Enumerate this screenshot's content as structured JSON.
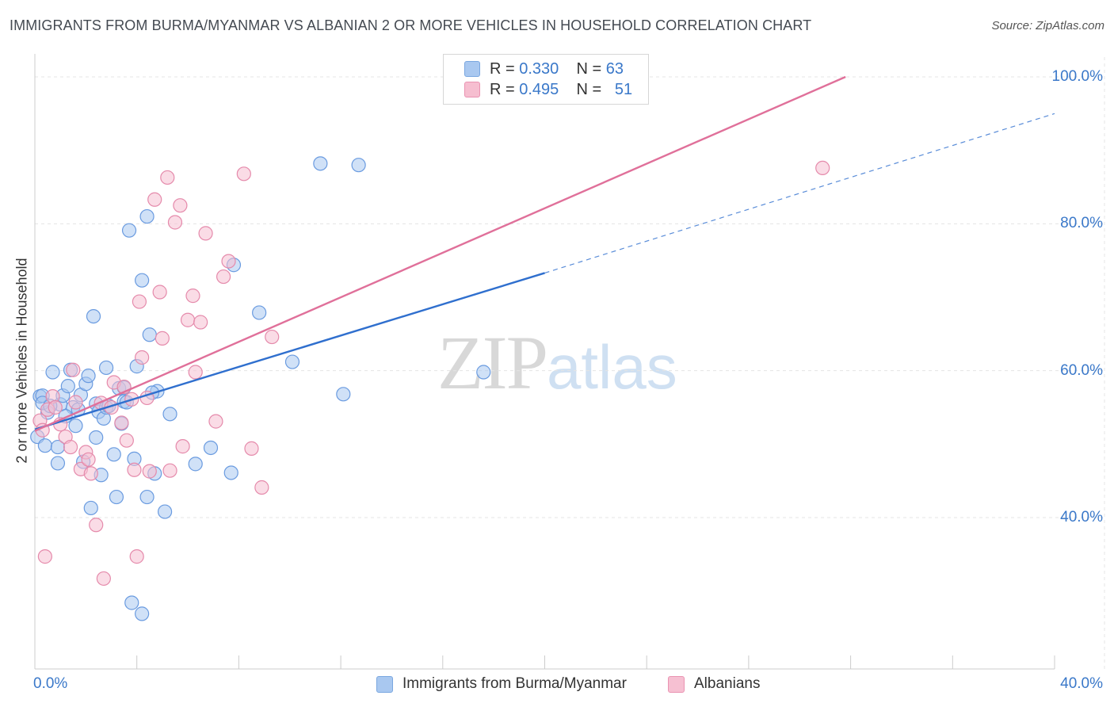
{
  "header": {
    "title": "IMMIGRANTS FROM BURMA/MYANMAR VS ALBANIAN 2 OR MORE VEHICLES IN HOUSEHOLD CORRELATION CHART",
    "source": "Source: ZipAtlas.com"
  },
  "watermark": {
    "zip": "ZIP",
    "atlas": "atlas"
  },
  "legend": {
    "rows": [
      {
        "r_label": "R =",
        "r_value": "0.330",
        "n_label": "N =",
        "n_value": "63",
        "color": "#a9c8f0",
        "border": "#7aa7e0"
      },
      {
        "r_label": "R =",
        "r_value": "0.495",
        "n_label": "N =",
        "n_value": "51",
        "color": "#f6bed0",
        "border": "#ea93b2"
      }
    ]
  },
  "colors": {
    "blue_fill": "#a9c8f0",
    "blue_stroke": "#6a9be0",
    "blue_line": "#2f6fce",
    "pink_fill": "#f6c0d2",
    "pink_stroke": "#e58aab",
    "pink_line": "#e0709a",
    "grid": "#e4e4e4",
    "axis": "#cccccc"
  },
  "chart_data": {
    "type": "scatter",
    "title": "IMMIGRANTS FROM BURMA/MYANMAR VS ALBANIAN 2 OR MORE VEHICLES IN HOUSEHOLD CORRELATION CHART",
    "xlabel": "",
    "ylabel": "2 or more Vehicles in Household",
    "xlim": [
      0,
      40
    ],
    "ylim": [
      20,
      102
    ],
    "x_tick_labels": [
      "0.0%",
      "40.0%"
    ],
    "y_ticks": [
      40,
      60,
      80,
      100
    ],
    "y_tick_labels": [
      "40.0%",
      "60.0%",
      "80.0%",
      "100.0%"
    ],
    "grid": true,
    "legend_position": "top-center",
    "series": [
      {
        "name": "Immigrants from Burma/Myanmar",
        "color": "#a9c8f0",
        "trend": {
          "x": [
            0,
            20
          ],
          "y": [
            52.0,
            73.3
          ],
          "dashed_to": [
            40,
            95.0
          ]
        },
        "points": [
          [
            0.1,
            51.0
          ],
          [
            0.2,
            56.5
          ],
          [
            0.3,
            56.6
          ],
          [
            0.4,
            49.8
          ],
          [
            0.5,
            54.3
          ],
          [
            0.7,
            59.8
          ],
          [
            0.9,
            47.4
          ],
          [
            0.9,
            49.6
          ],
          [
            1.0,
            55.4
          ],
          [
            1.1,
            56.6
          ],
          [
            1.3,
            57.9
          ],
          [
            1.4,
            60.1
          ],
          [
            1.5,
            55.0
          ],
          [
            1.6,
            52.5
          ],
          [
            1.7,
            54.7
          ],
          [
            1.8,
            56.7
          ],
          [
            1.9,
            47.6
          ],
          [
            2.0,
            58.2
          ],
          [
            2.1,
            59.3
          ],
          [
            2.2,
            41.3
          ],
          [
            2.3,
            67.4
          ],
          [
            2.4,
            55.5
          ],
          [
            2.4,
            50.9
          ],
          [
            2.5,
            54.4
          ],
          [
            2.6,
            45.8
          ],
          [
            2.7,
            53.5
          ],
          [
            2.8,
            55.0
          ],
          [
            2.8,
            60.4
          ],
          [
            3.1,
            48.6
          ],
          [
            3.2,
            42.8
          ],
          [
            3.3,
            57.6
          ],
          [
            3.4,
            52.8
          ],
          [
            3.5,
            55.8
          ],
          [
            3.6,
            55.7
          ],
          [
            3.7,
            79.1
          ],
          [
            3.8,
            28.4
          ],
          [
            3.9,
            48.0
          ],
          [
            4.0,
            60.6
          ],
          [
            4.2,
            26.9
          ],
          [
            4.2,
            72.3
          ],
          [
            4.4,
            42.8
          ],
          [
            4.4,
            81.0
          ],
          [
            4.5,
            64.9
          ],
          [
            4.7,
            46.0
          ],
          [
            4.8,
            57.2
          ],
          [
            5.1,
            40.8
          ],
          [
            5.3,
            54.1
          ],
          [
            6.3,
            47.3
          ],
          [
            6.9,
            49.5
          ],
          [
            7.7,
            46.1
          ],
          [
            7.8,
            74.4
          ],
          [
            8.8,
            67.9
          ],
          [
            10.1,
            61.2
          ],
          [
            11.2,
            88.2
          ],
          [
            12.1,
            56.8
          ],
          [
            12.7,
            88.0
          ],
          [
            17.6,
            59.8
          ],
          [
            0.3,
            55.6
          ],
          [
            1.2,
            53.8
          ],
          [
            2.9,
            55.2
          ],
          [
            3.5,
            57.7
          ],
          [
            4.6,
            57.0
          ],
          [
            0.6,
            55.2
          ]
        ]
      },
      {
        "name": "Albanians",
        "color": "#f6c0d2",
        "trend": {
          "x": [
            0,
            31.8
          ],
          "y": [
            51.8,
            100.0
          ]
        },
        "points": [
          [
            0.2,
            53.2
          ],
          [
            0.3,
            51.9
          ],
          [
            0.4,
            34.7
          ],
          [
            0.5,
            54.7
          ],
          [
            0.7,
            56.5
          ],
          [
            0.8,
            55.0
          ],
          [
            1.0,
            52.7
          ],
          [
            1.2,
            51.0
          ],
          [
            1.4,
            49.6
          ],
          [
            1.5,
            60.1
          ],
          [
            1.6,
            55.7
          ],
          [
            1.8,
            46.6
          ],
          [
            2.0,
            48.9
          ],
          [
            2.1,
            47.9
          ],
          [
            2.2,
            46.0
          ],
          [
            2.4,
            39.0
          ],
          [
            2.6,
            55.6
          ],
          [
            2.7,
            31.7
          ],
          [
            3.0,
            55.0
          ],
          [
            3.1,
            58.4
          ],
          [
            3.4,
            52.9
          ],
          [
            3.5,
            57.8
          ],
          [
            3.6,
            50.5
          ],
          [
            3.8,
            56.1
          ],
          [
            3.9,
            46.5
          ],
          [
            4.0,
            34.7
          ],
          [
            4.1,
            69.4
          ],
          [
            4.2,
            61.8
          ],
          [
            4.4,
            56.3
          ],
          [
            4.5,
            46.3
          ],
          [
            4.7,
            83.3
          ],
          [
            4.9,
            70.7
          ],
          [
            5.0,
            64.4
          ],
          [
            5.2,
            86.3
          ],
          [
            5.3,
            46.4
          ],
          [
            5.5,
            80.2
          ],
          [
            5.7,
            82.5
          ],
          [
            5.8,
            49.7
          ],
          [
            6.0,
            66.9
          ],
          [
            6.2,
            70.2
          ],
          [
            6.3,
            59.8
          ],
          [
            6.5,
            66.6
          ],
          [
            6.7,
            78.7
          ],
          [
            7.1,
            53.1
          ],
          [
            7.4,
            72.8
          ],
          [
            7.6,
            74.9
          ],
          [
            8.2,
            86.8
          ],
          [
            8.5,
            49.4
          ],
          [
            8.9,
            44.1
          ],
          [
            9.3,
            64.6
          ],
          [
            30.9,
            87.6
          ]
        ]
      }
    ]
  },
  "bottom_legend": {
    "items": [
      {
        "label": "Immigrants from Burma/Myanmar",
        "color": "#a9c8f0",
        "border": "#7aa7e0"
      },
      {
        "label": "Albanians",
        "color": "#f6c0d2",
        "border": "#ea93b2"
      }
    ]
  }
}
